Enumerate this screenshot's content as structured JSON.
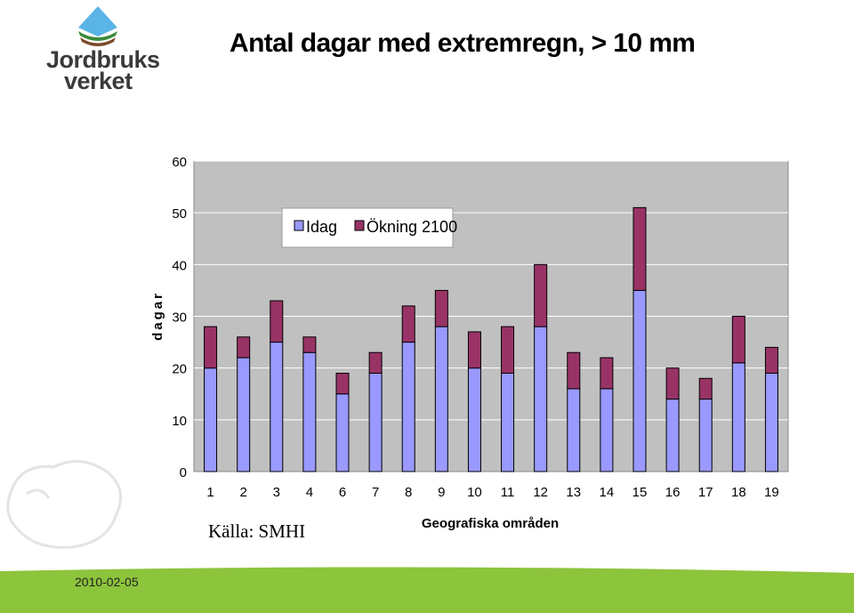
{
  "brand": {
    "name_line1": "Jordbruks",
    "name_line2": "verket"
  },
  "title": "Antal dagar med extremregn, > 10 mm",
  "source": "Källa: SMHI",
  "footer": {
    "date": "2010-02-05"
  },
  "colors": {
    "idag": "#9999ff",
    "okning": "#993366",
    "plot_bg": "#c0c0c0",
    "footer_green": "#8cc43c"
  },
  "chart_data": {
    "type": "bar",
    "stacked": true,
    "categories": [
      "1",
      "2",
      "3",
      "4",
      "6",
      "7",
      "8",
      "9",
      "10",
      "11",
      "12",
      "13",
      "14",
      "15",
      "16",
      "17",
      "18",
      "19"
    ],
    "series": [
      {
        "name": "Idag",
        "values": [
          20,
          22,
          25,
          23,
          15,
          19,
          25,
          28,
          20,
          19,
          28,
          16,
          16,
          35,
          14,
          14,
          21,
          19
        ]
      },
      {
        "name": "Ökning 2100",
        "values": [
          8,
          4,
          8,
          3,
          4,
          4,
          7,
          7,
          7,
          9,
          12,
          7,
          6,
          16,
          6,
          4,
          9,
          5
        ]
      }
    ],
    "ylim": [
      0,
      60
    ],
    "yticks": [
      0,
      10,
      20,
      30,
      40,
      50,
      60
    ],
    "xlabel": "Geografiska områden",
    "ylabel": "dagar",
    "grid": true,
    "legend": "top"
  }
}
